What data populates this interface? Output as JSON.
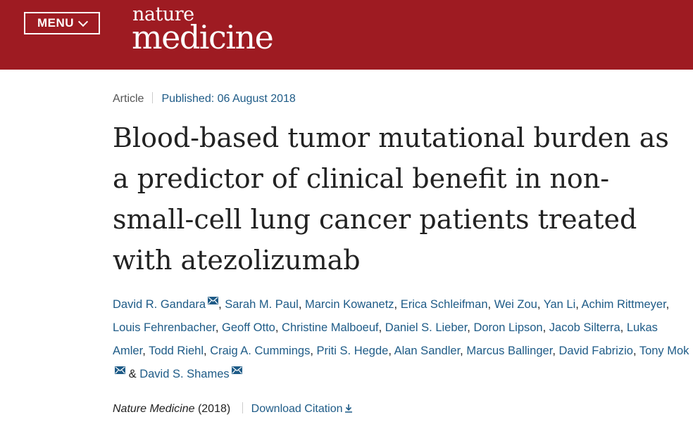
{
  "header": {
    "menu_label": "MENU",
    "logo_top": "nature",
    "logo_bottom": "medicine"
  },
  "article": {
    "type": "Article",
    "published": "Published: 06 August 2018",
    "title": "Blood-based tumor mutational burden as a predictor of clinical benefit in non-small-cell lung cancer patients treated with atezolizumab",
    "authors": [
      {
        "name": "David R. Gandara",
        "mail": true
      },
      {
        "name": "Sarah M. Paul",
        "mail": false
      },
      {
        "name": "Marcin Kowanetz",
        "mail": false
      },
      {
        "name": "Erica Schleifman",
        "mail": false
      },
      {
        "name": "Wei Zou",
        "mail": false
      },
      {
        "name": "Yan Li",
        "mail": false
      },
      {
        "name": "Achim Rittmeyer",
        "mail": false
      },
      {
        "name": "Louis Fehrenbacher",
        "mail": false
      },
      {
        "name": "Geoff Otto",
        "mail": false
      },
      {
        "name": "Christine Malboeuf",
        "mail": false
      },
      {
        "name": "Daniel S. Lieber",
        "mail": false
      },
      {
        "name": "Doron Lipson",
        "mail": false
      },
      {
        "name": "Jacob Silterra",
        "mail": false
      },
      {
        "name": "Lukas Amler",
        "mail": false
      },
      {
        "name": "Todd Riehl",
        "mail": false
      },
      {
        "name": "Craig A. Cummings",
        "mail": false
      },
      {
        "name": "Priti S. Hegde",
        "mail": false
      },
      {
        "name": "Alan Sandler",
        "mail": false
      },
      {
        "name": "Marcus Ballinger",
        "mail": false
      },
      {
        "name": "David Fabrizio",
        "mail": false
      },
      {
        "name": "Tony Mok",
        "mail": true
      },
      {
        "name": "David S. Shames",
        "mail": true
      }
    ],
    "journal": "Nature Medicine",
    "year": "(2018)",
    "download_label": "Download Citation"
  },
  "colors": {
    "header_bg": "#9e1b22",
    "link": "#1e5b87",
    "text": "#222222"
  },
  "icons": {
    "menu": "chevron-down-icon",
    "mail": "mail-icon",
    "download": "download-icon"
  }
}
